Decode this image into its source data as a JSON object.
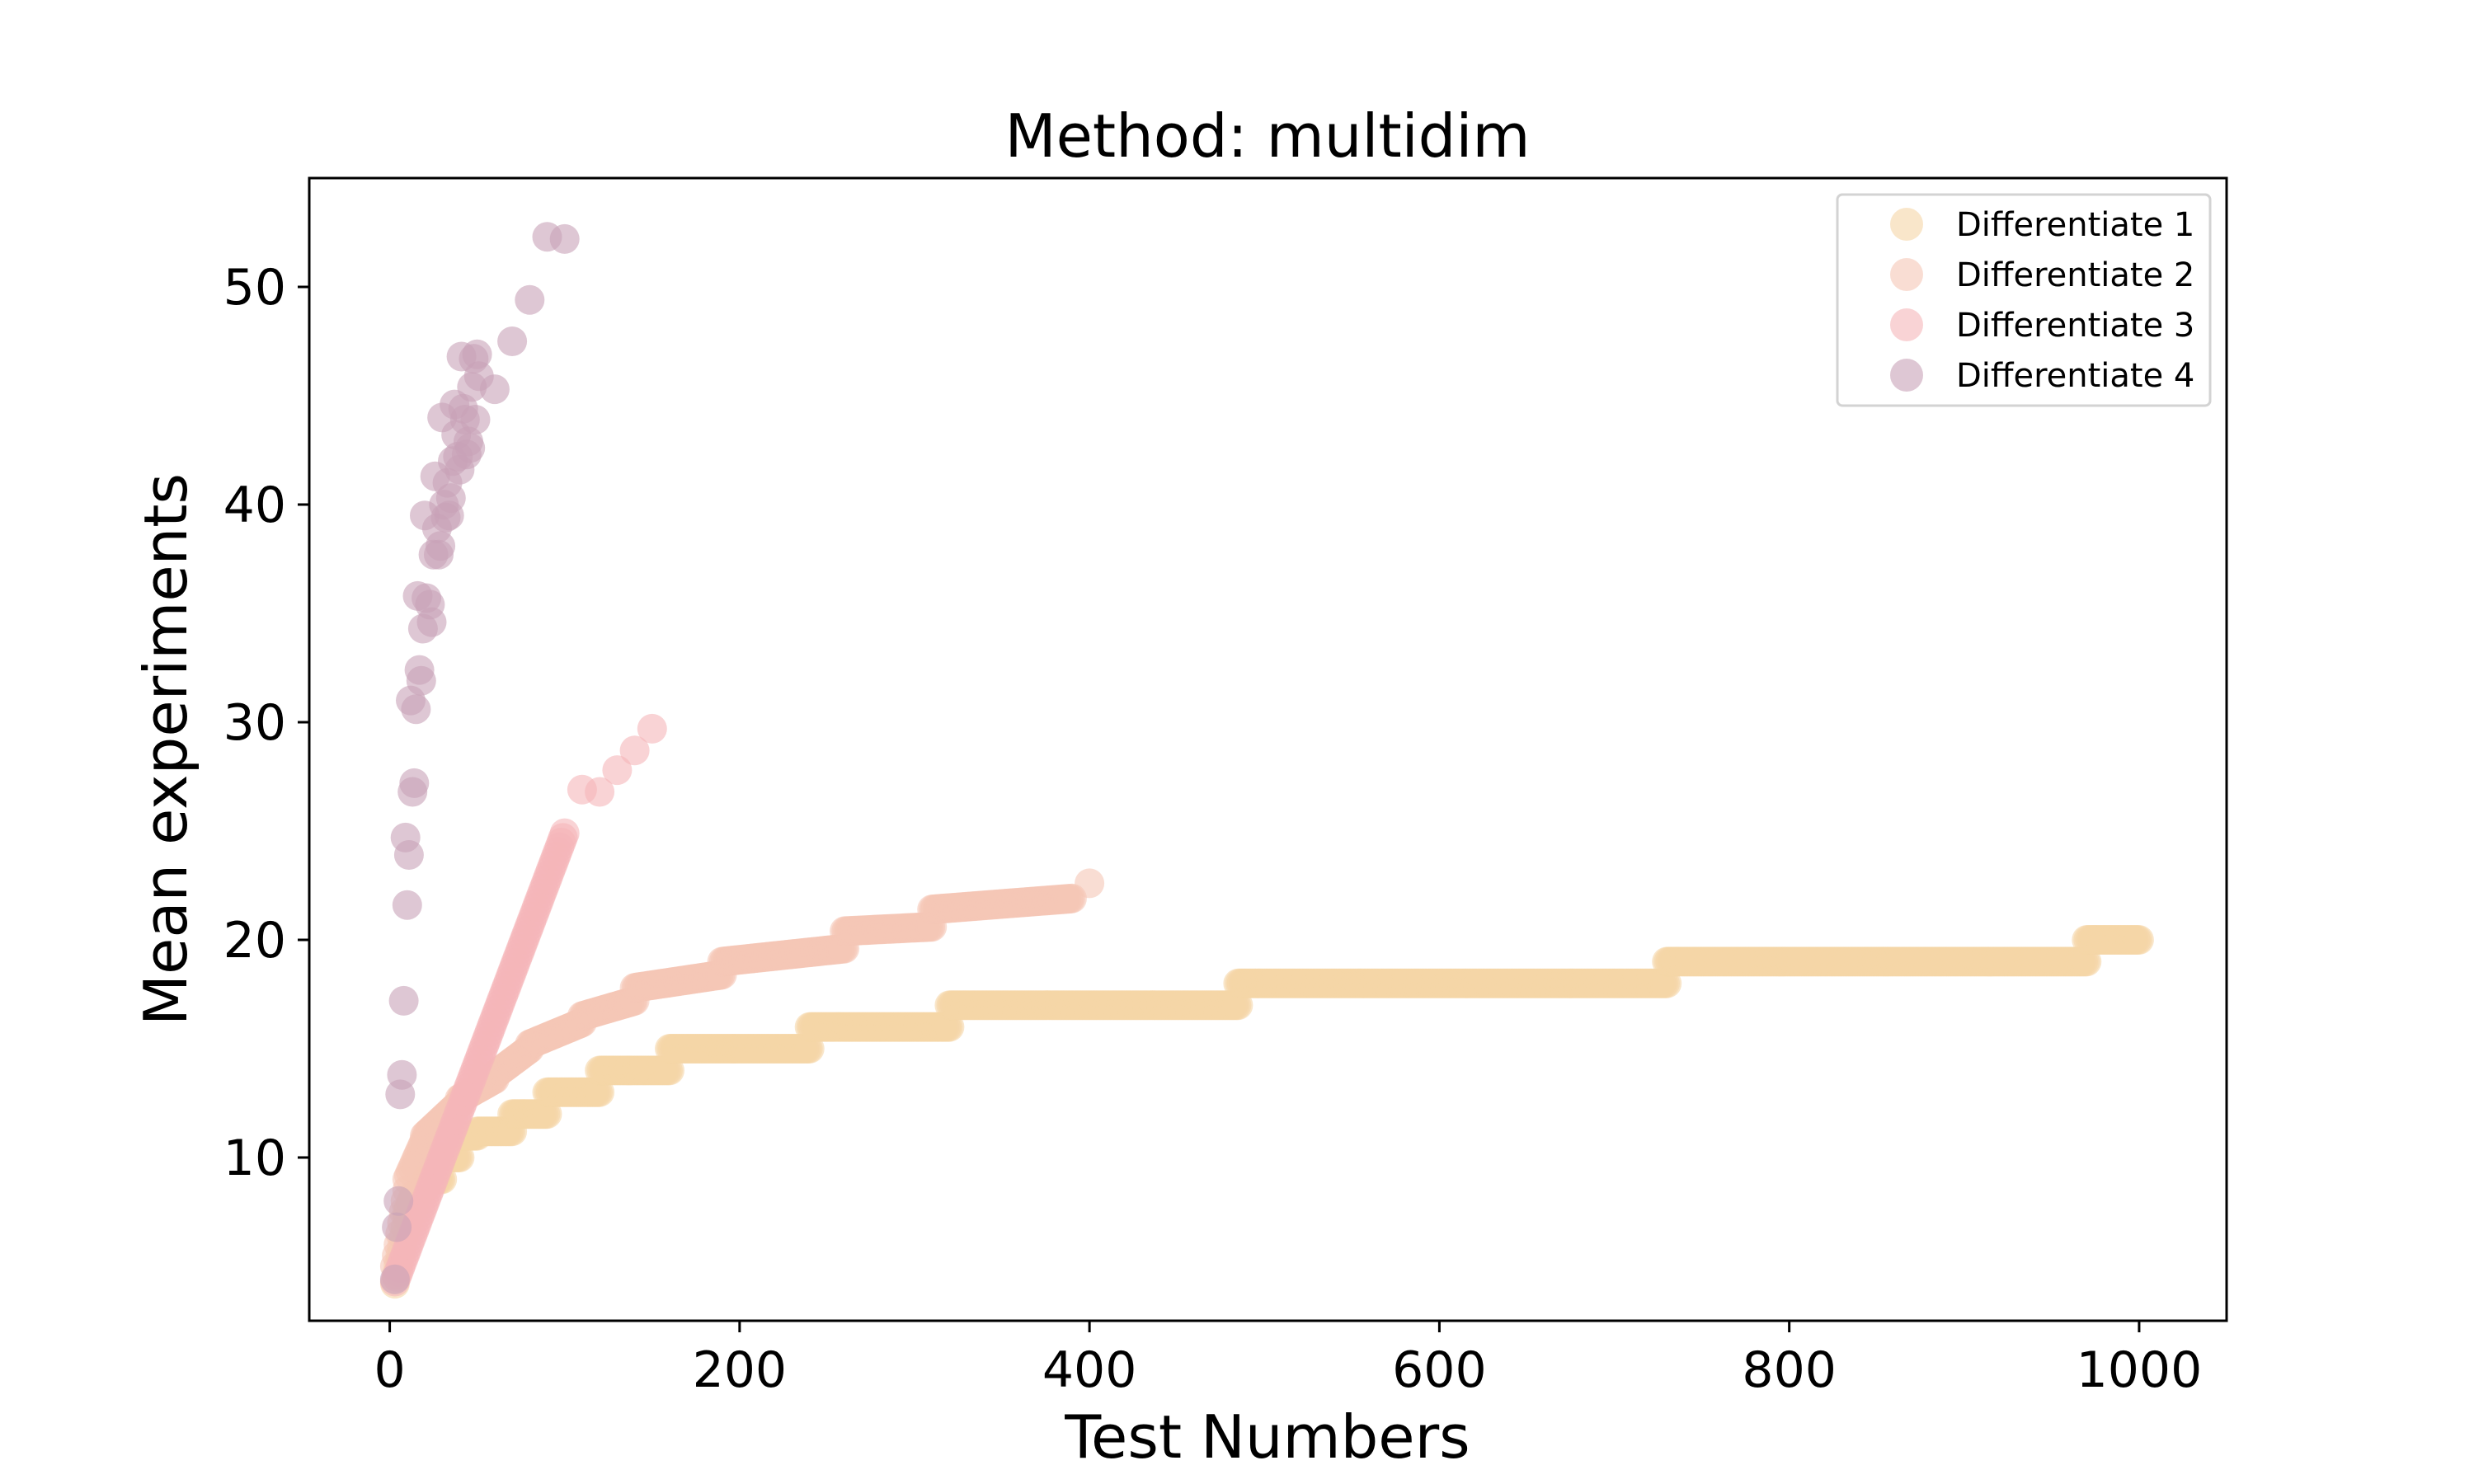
{
  "chart_data": {
    "type": "scatter",
    "title": "Method: multidim",
    "xlabel": "Test Numbers",
    "ylabel": "Mean experiments",
    "xlim": [
      -46,
      1050
    ],
    "ylim": [
      2.5,
      55
    ],
    "xticks": [
      0,
      200,
      400,
      600,
      800,
      1000
    ],
    "yticks": [
      10,
      20,
      30,
      40,
      50
    ],
    "grid": false,
    "legend_position": "top-right",
    "marker_opacity": 0.6,
    "series": [
      {
        "name": "Differentiate 1",
        "color": "#f5d5a6",
        "steps": [
          [
            3,
            10,
            4.2,
            7.2
          ],
          [
            10,
            14,
            7.5,
            8.3
          ],
          [
            14,
            20,
            8.2,
            8.6
          ],
          [
            20,
            30,
            9,
            9
          ],
          [
            30,
            40,
            10,
            10
          ],
          [
            40,
            50,
            11,
            11
          ],
          [
            50,
            70,
            11.2,
            11.2
          ],
          [
            70,
            90,
            12,
            12
          ],
          [
            90,
            120,
            13,
            13
          ],
          [
            120,
            160,
            14,
            14
          ],
          [
            160,
            240,
            15,
            15
          ],
          [
            240,
            320,
            16,
            16
          ],
          [
            320,
            485,
            17,
            17
          ],
          [
            485,
            730,
            18,
            18
          ],
          [
            730,
            970,
            19,
            19
          ],
          [
            970,
            1000,
            20,
            20
          ]
        ]
      },
      {
        "name": "Differentiate 2",
        "color": "#f5c6b6",
        "steps": [
          [
            3,
            10,
            5,
            8.5
          ],
          [
            10,
            20,
            9,
            10.8
          ],
          [
            20,
            40,
            11,
            12.5
          ],
          [
            40,
            60,
            12.7,
            13.6
          ],
          [
            60,
            80,
            13.8,
            15
          ],
          [
            80,
            110,
            15.2,
            16.2
          ],
          [
            110,
            140,
            16.5,
            17.2
          ],
          [
            140,
            190,
            17.8,
            18.4
          ],
          [
            190,
            260,
            19,
            19.6
          ],
          [
            260,
            310,
            20.4,
            20.6
          ],
          [
            310,
            390,
            21.4,
            21.9
          ]
        ],
        "points": [
          [
            400,
            22.6
          ]
        ]
      },
      {
        "name": "Differentiate 3",
        "color": "#f5b5b9",
        "steps": [
          [
            3,
            100,
            4.3,
            24.9
          ]
        ],
        "points": [
          [
            110,
            26.9
          ],
          [
            120,
            26.8
          ],
          [
            130,
            27.8
          ],
          [
            140,
            28.7
          ],
          [
            150,
            29.7
          ]
        ]
      },
      {
        "name": "Differentiate 4",
        "color": "#c8a1b7",
        "points": [
          [
            3,
            4.4
          ],
          [
            4,
            6.8
          ],
          [
            5,
            8
          ],
          [
            6,
            12.9
          ],
          [
            7,
            13.8
          ],
          [
            8,
            17.2
          ],
          [
            9,
            24.7
          ],
          [
            10,
            21.6
          ],
          [
            11,
            23.9
          ],
          [
            12,
            31
          ],
          [
            13,
            26.8
          ],
          [
            14,
            27.2
          ],
          [
            15,
            30.6
          ],
          [
            16,
            35.8
          ],
          [
            17,
            32.4
          ],
          [
            18,
            31.9
          ],
          [
            19,
            34.3
          ],
          [
            20,
            39.5
          ],
          [
            21,
            35.7
          ],
          [
            23,
            35.4
          ],
          [
            24,
            34.6
          ],
          [
            25,
            37.7
          ],
          [
            26,
            41.3
          ],
          [
            27,
            38.9
          ],
          [
            28,
            37.7
          ],
          [
            29,
            38.1
          ],
          [
            30,
            44
          ],
          [
            31,
            40
          ],
          [
            32,
            39.4
          ],
          [
            33,
            41
          ],
          [
            34,
            39.5
          ],
          [
            35,
            40.3
          ],
          [
            36,
            42
          ],
          [
            37,
            44.6
          ],
          [
            38,
            43.2
          ],
          [
            39,
            42.2
          ],
          [
            40,
            41.6
          ],
          [
            41,
            46.8
          ],
          [
            42,
            44.4
          ],
          [
            43,
            43.9
          ],
          [
            44,
            42.3
          ],
          [
            45,
            42.9
          ],
          [
            46,
            42.6
          ],
          [
            47,
            45.4
          ],
          [
            48,
            46.7
          ],
          [
            49,
            43.9
          ],
          [
            50,
            46.9
          ],
          [
            51,
            45.9
          ],
          [
            60,
            45.3
          ],
          [
            70,
            47.5
          ],
          [
            80,
            49.4
          ],
          [
            90,
            52.3
          ],
          [
            100,
            52.2
          ]
        ]
      }
    ]
  }
}
